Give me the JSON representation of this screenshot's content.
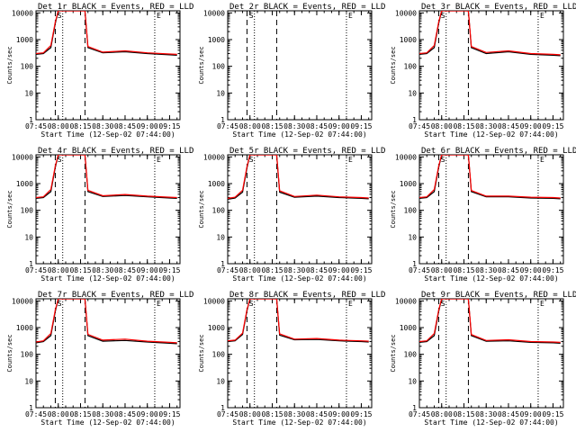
{
  "chart_data": [
    {
      "type": "line",
      "title": "Det 1r BLACK = Events, RED = LLD",
      "xlabel": "Start Time (12-Sep-02 07:44:00)",
      "ylabel": "Counts/sec",
      "yscale": "log",
      "ylim": [
        1,
        12000
      ],
      "xlim": [
        "07:45",
        "09:22"
      ],
      "x_ticks": [
        "07:45",
        "08:00",
        "08:15",
        "08:30",
        "08:45",
        "09:00",
        "09:15"
      ],
      "y_ticks": [
        "1",
        "10",
        "100",
        "1000",
        "10000"
      ],
      "annotations": [
        "S",
        "E"
      ],
      "dashed_lines": [
        "07:58",
        "08:18"
      ],
      "dotted_lines": [
        "08:03",
        "09:05"
      ],
      "series": [
        {
          "name": "Events",
          "color": "#000000",
          "x": [
            "07:45",
            "07:50",
            "07:55",
            "07:58",
            "08:00",
            "08:02",
            "08:18",
            "08:20",
            "08:30",
            "08:45",
            "09:00",
            "09:15",
            "09:20"
          ],
          "y": [
            280,
            300,
            500,
            4000,
            12000,
            12000,
            12000,
            500,
            320,
            350,
            300,
            270,
            260
          ]
        },
        {
          "name": "LLD",
          "color": "#ff0000",
          "x": [
            "07:45",
            "07:50",
            "07:55",
            "07:58",
            "08:00",
            "08:02",
            "08:18",
            "08:20",
            "08:30",
            "08:45",
            "09:00",
            "09:15",
            "09:20"
          ],
          "y": [
            300,
            320,
            600,
            4500,
            12000,
            12000,
            12000,
            550,
            340,
            380,
            320,
            290,
            280
          ]
        }
      ]
    },
    {
      "type": "line",
      "title": "Det 2r BLACK = Events, RED = LLD",
      "xlabel": "Start Time (12-Sep-02 07:44:00)",
      "ylabel": "Counts/sec",
      "yscale": "log",
      "ylim": [
        1,
        12000
      ],
      "xlim": [
        "07:45",
        "09:22"
      ],
      "x_ticks": [
        "07:45",
        "08:00",
        "08:15",
        "08:30",
        "08:45",
        "09:00",
        "09:15"
      ],
      "y_ticks": [
        "1",
        "10",
        "100",
        "1000",
        "10000"
      ],
      "annotations": [
        "S",
        "E"
      ],
      "dashed_lines": [
        "07:58",
        "08:18"
      ],
      "dotted_lines": [
        "08:03",
        "09:05"
      ],
      "series": []
    },
    {
      "type": "line",
      "title": "Det 3r BLACK = Events, RED = LLD",
      "xlabel": "Start Time (12-Sep-02 07:44:00)",
      "ylabel": "Counts/sec",
      "yscale": "log",
      "ylim": [
        1,
        12000
      ],
      "xlim": [
        "07:45",
        "09:22"
      ],
      "x_ticks": [
        "07:45",
        "08:00",
        "08:15",
        "08:30",
        "08:45",
        "09:00",
        "09:15"
      ],
      "y_ticks": [
        "1",
        "10",
        "100",
        "1000",
        "10000"
      ],
      "annotations": [
        "S",
        "E"
      ],
      "dashed_lines": [
        "07:58",
        "08:18"
      ],
      "dotted_lines": [
        "08:03",
        "09:05"
      ],
      "series": [
        {
          "name": "Events",
          "color": "#000000",
          "x": [
            "07:45",
            "07:50",
            "07:55",
            "07:58",
            "08:00",
            "08:02",
            "08:18",
            "08:20",
            "08:30",
            "08:45",
            "09:00",
            "09:15",
            "09:20"
          ],
          "y": [
            280,
            300,
            500,
            4000,
            12000,
            12000,
            12000,
            500,
            300,
            350,
            280,
            260,
            250
          ]
        },
        {
          "name": "LLD",
          "color": "#ff0000",
          "x": [
            "07:45",
            "07:50",
            "07:55",
            "07:58",
            "08:00",
            "08:02",
            "08:18",
            "08:20",
            "08:30",
            "08:45",
            "09:00",
            "09:15",
            "09:20"
          ],
          "y": [
            300,
            320,
            600,
            4500,
            12000,
            12000,
            12000,
            550,
            330,
            380,
            300,
            280,
            270
          ]
        }
      ]
    },
    {
      "type": "line",
      "title": "Det 4r BLACK = Events, RED = LLD",
      "xlabel": "Start Time (12-Sep-02 07:44:00)",
      "ylabel": "Counts/sec",
      "yscale": "log",
      "ylim": [
        1,
        12000
      ],
      "xlim": [
        "07:45",
        "09:22"
      ],
      "x_ticks": [
        "07:45",
        "08:00",
        "08:15",
        "08:30",
        "08:45",
        "09:00",
        "09:15"
      ],
      "y_ticks": [
        "1",
        "10",
        "100",
        "1000",
        "10000"
      ],
      "annotations": [
        "S",
        "E"
      ],
      "dashed_lines": [
        "07:58",
        "08:18"
      ],
      "dotted_lines": [
        "08:03",
        "09:05"
      ],
      "series": [
        {
          "name": "Events",
          "color": "#000000",
          "x": [
            "07:45",
            "07:50",
            "07:55",
            "07:58",
            "08:00",
            "08:02",
            "08:18",
            "08:20",
            "08:30",
            "08:45",
            "09:00",
            "09:15",
            "09:20"
          ],
          "y": [
            280,
            300,
            500,
            4000,
            12000,
            12000,
            12000,
            500,
            330,
            360,
            320,
            290,
            280
          ]
        },
        {
          "name": "LLD",
          "color": "#ff0000",
          "x": [
            "07:45",
            "07:50",
            "07:55",
            "07:58",
            "08:00",
            "08:02",
            "08:18",
            "08:20",
            "08:30",
            "08:45",
            "09:00",
            "09:15",
            "09:20"
          ],
          "y": [
            300,
            320,
            600,
            4500,
            12000,
            12000,
            12000,
            560,
            350,
            390,
            340,
            310,
            300
          ]
        }
      ]
    },
    {
      "type": "line",
      "title": "Det 5r BLACK = Events, RED = LLD",
      "xlabel": "Start Time (12-Sep-02 07:44:00)",
      "ylabel": "Counts/sec",
      "yscale": "log",
      "ylim": [
        1,
        12000
      ],
      "xlim": [
        "07:45",
        "09:22"
      ],
      "x_ticks": [
        "07:45",
        "08:00",
        "08:15",
        "08:30",
        "08:45",
        "09:00",
        "09:15"
      ],
      "y_ticks": [
        "1",
        "10",
        "100",
        "1000",
        "10000"
      ],
      "annotations": [
        "S",
        "E"
      ],
      "dashed_lines": [
        "07:58",
        "08:18"
      ],
      "dotted_lines": [
        "08:03",
        "09:05"
      ],
      "series": [
        {
          "name": "Events",
          "color": "#000000",
          "x": [
            "07:45",
            "07:50",
            "07:55",
            "07:58",
            "08:00",
            "08:02",
            "08:18",
            "08:20",
            "08:30",
            "08:45",
            "09:00",
            "09:15",
            "09:20"
          ],
          "y": [
            260,
            290,
            480,
            3800,
            12000,
            12000,
            12000,
            480,
            310,
            340,
            300,
            280,
            270
          ]
        },
        {
          "name": "LLD",
          "color": "#ff0000",
          "x": [
            "07:45",
            "07:50",
            "07:55",
            "07:58",
            "08:00",
            "08:02",
            "08:18",
            "08:20",
            "08:30",
            "08:45",
            "09:00",
            "09:15",
            "09:20"
          ],
          "y": [
            280,
            310,
            560,
            4300,
            12000,
            12000,
            12000,
            540,
            330,
            370,
            320,
            300,
            290
          ]
        }
      ]
    },
    {
      "type": "line",
      "title": "Det 6r BLACK = Events, RED = LLD",
      "xlabel": "Start Time (12-Sep-02 07:44:00)",
      "ylabel": "Counts/sec",
      "yscale": "log",
      "ylim": [
        1,
        12000
      ],
      "xlim": [
        "07:45",
        "09:22"
      ],
      "x_ticks": [
        "07:45",
        "08:00",
        "08:15",
        "08:30",
        "08:45",
        "09:00",
        "09:15"
      ],
      "y_ticks": [
        "1",
        "10",
        "100",
        "1000",
        "10000"
      ],
      "annotations": [
        "S",
        "E"
      ],
      "dashed_lines": [
        "07:58",
        "08:18"
      ],
      "dotted_lines": [
        "08:03",
        "09:05"
      ],
      "series": [
        {
          "name": "Events",
          "color": "#000000",
          "x": [
            "07:45",
            "07:50",
            "07:55",
            "07:58",
            "08:00",
            "08:02",
            "08:18",
            "08:20",
            "08:30",
            "08:45",
            "09:00",
            "09:15",
            "09:20"
          ],
          "y": [
            280,
            300,
            500,
            4000,
            12000,
            12000,
            12000,
            500,
            320,
            320,
            290,
            280,
            270
          ]
        },
        {
          "name": "LLD",
          "color": "#ff0000",
          "x": [
            "07:45",
            "07:50",
            "07:55",
            "07:58",
            "08:00",
            "08:02",
            "08:18",
            "08:20",
            "08:30",
            "08:45",
            "09:00",
            "09:15",
            "09:20"
          ],
          "y": [
            300,
            320,
            600,
            4500,
            12000,
            12000,
            12000,
            550,
            340,
            340,
            310,
            300,
            290
          ]
        }
      ]
    },
    {
      "type": "line",
      "title": "Det 7r BLACK = Events, RED = LLD",
      "xlabel": "Start Time (12-Sep-02 07:44:00)",
      "ylabel": "Counts/sec",
      "yscale": "log",
      "ylim": [
        1,
        12000
      ],
      "xlim": [
        "07:45",
        "09:22"
      ],
      "x_ticks": [
        "07:45",
        "08:00",
        "08:15",
        "08:30",
        "08:45",
        "09:00",
        "09:15"
      ],
      "y_ticks": [
        "1",
        "10",
        "100",
        "1000",
        "10000"
      ],
      "annotations": [
        "S",
        "E"
      ],
      "dashed_lines": [
        "07:58",
        "08:18"
      ],
      "dotted_lines": [
        "08:03",
        "09:05"
      ],
      "series": [
        {
          "name": "Events",
          "color": "#000000",
          "x": [
            "07:45",
            "07:50",
            "07:55",
            "07:58",
            "08:00",
            "08:02",
            "08:18",
            "08:20",
            "08:30",
            "08:45",
            "09:00",
            "09:15",
            "09:20"
          ],
          "y": [
            270,
            300,
            500,
            4000,
            12000,
            12000,
            12000,
            500,
            310,
            330,
            290,
            260,
            250
          ]
        },
        {
          "name": "LLD",
          "color": "#ff0000",
          "x": [
            "07:45",
            "07:50",
            "07:55",
            "07:58",
            "08:00",
            "08:02",
            "08:18",
            "08:20",
            "08:30",
            "08:45",
            "09:00",
            "09:15",
            "09:20"
          ],
          "y": [
            290,
            320,
            600,
            4500,
            12000,
            12000,
            12000,
            560,
            340,
            370,
            310,
            280,
            270
          ]
        }
      ]
    },
    {
      "type": "line",
      "title": "Det 8r BLACK = Events, RED = LLD",
      "xlabel": "Start Time (12-Sep-02 07:44:00)",
      "ylabel": "Counts/sec",
      "yscale": "log",
      "ylim": [
        1,
        12000
      ],
      "xlim": [
        "07:45",
        "09:22"
      ],
      "x_ticks": [
        "07:45",
        "08:00",
        "08:15",
        "08:30",
        "08:45",
        "09:00",
        "09:15"
      ],
      "y_ticks": [
        "1",
        "10",
        "100",
        "1000",
        "10000"
      ],
      "annotations": [
        "S",
        "E"
      ],
      "dashed_lines": [
        "07:58",
        "08:18"
      ],
      "dotted_lines": [
        "08:03",
        "09:05"
      ],
      "series": [
        {
          "name": "Events",
          "color": "#000000",
          "x": [
            "07:45",
            "07:50",
            "07:55",
            "07:58",
            "08:00",
            "08:02",
            "08:18",
            "08:20",
            "08:30",
            "08:45",
            "09:00",
            "09:15",
            "09:20"
          ],
          "y": [
            300,
            320,
            550,
            4200,
            12000,
            12000,
            12000,
            520,
            350,
            360,
            320,
            300,
            290
          ]
        },
        {
          "name": "LLD",
          "color": "#ff0000",
          "x": [
            "07:45",
            "07:50",
            "07:55",
            "07:58",
            "08:00",
            "08:02",
            "08:18",
            "08:20",
            "08:30",
            "08:45",
            "09:00",
            "09:15",
            "09:20"
          ],
          "y": [
            320,
            340,
            620,
            4700,
            12000,
            12000,
            12000,
            580,
            370,
            390,
            340,
            320,
            310
          ]
        }
      ]
    },
    {
      "type": "line",
      "title": "Det 9r BLACK = Events, RED = LLD",
      "xlabel": "Start Time (12-Sep-02 07:44:00)",
      "ylabel": "Counts/sec",
      "yscale": "log",
      "ylim": [
        1,
        12000
      ],
      "xlim": [
        "07:45",
        "09:22"
      ],
      "x_ticks": [
        "07:45",
        "08:00",
        "08:15",
        "08:30",
        "08:45",
        "09:00",
        "09:15"
      ],
      "y_ticks": [
        "1",
        "10",
        "100",
        "1000",
        "10000"
      ],
      "annotations": [
        "S",
        "E"
      ],
      "dashed_lines": [
        "07:58",
        "08:18"
      ],
      "dotted_lines": [
        "08:03",
        "09:05"
      ],
      "series": [
        {
          "name": "Events",
          "color": "#000000",
          "x": [
            "07:45",
            "07:50",
            "07:55",
            "07:58",
            "08:00",
            "08:02",
            "08:18",
            "08:20",
            "08:30",
            "08:45",
            "09:00",
            "09:15",
            "09:20"
          ],
          "y": [
            280,
            300,
            500,
            4000,
            12000,
            12000,
            12000,
            500,
            310,
            320,
            280,
            270,
            260
          ]
        },
        {
          "name": "LLD",
          "color": "#ff0000",
          "x": [
            "07:45",
            "07:50",
            "07:55",
            "07:58",
            "08:00",
            "08:02",
            "08:18",
            "08:20",
            "08:30",
            "08:45",
            "09:00",
            "09:15",
            "09:20"
          ],
          "y": [
            300,
            320,
            600,
            4500,
            12000,
            12000,
            12000,
            550,
            330,
            350,
            300,
            290,
            280
          ]
        }
      ]
    }
  ]
}
